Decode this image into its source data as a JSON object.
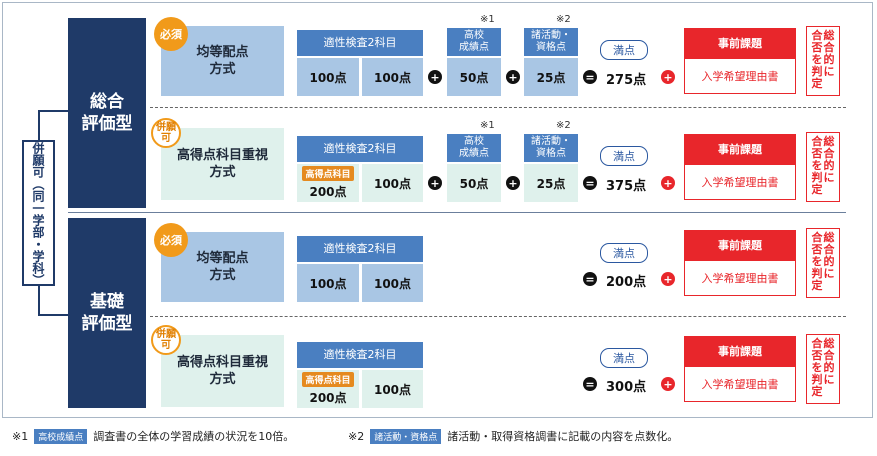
{
  "side_label": "併願可（同一学部・学科）",
  "categories": [
    {
      "label_line1": "総合",
      "label_line2": "評価型"
    },
    {
      "label_line1": "基礎",
      "label_line2": "評価型"
    }
  ],
  "rows": [
    {
      "badge": "必須",
      "method_line1": "均等配点",
      "method_line2": "方式",
      "subject_header": "適性検査2科目",
      "score1_tag": "",
      "score1": "100点",
      "score2": "100点",
      "note1": "※1",
      "grades_header_line1": "高校",
      "grades_header_line2": "成績点",
      "grades_score": "50点",
      "note2": "※2",
      "qual_header_line1": "諸活動・",
      "qual_header_line2": "資格点",
      "qual_score": "25点",
      "full_label": "満点",
      "total": "275点",
      "task_header": "事前課題",
      "task_body": "入学希望理由書"
    },
    {
      "badge": "併願可",
      "method_line1": "高得点科目重視",
      "method_line2": "方式",
      "subject_header": "適性検査2科目",
      "score1_tag": "高得点科目",
      "score1": "200点",
      "score2": "100点",
      "note1": "※1",
      "grades_header_line1": "高校",
      "grades_header_line2": "成績点",
      "grades_score": "50点",
      "note2": "※2",
      "qual_header_line1": "諸活動・",
      "qual_header_line2": "資格点",
      "qual_score": "25点",
      "full_label": "満点",
      "total": "375点",
      "task_header": "事前課題",
      "task_body": "入学希望理由書"
    },
    {
      "badge": "必須",
      "method_line1": "均等配点",
      "method_line2": "方式",
      "subject_header": "適性検査2科目",
      "score1_tag": "",
      "score1": "100点",
      "score2": "100点",
      "full_label": "満点",
      "total": "200点",
      "task_header": "事前課題",
      "task_body": "入学希望理由書"
    },
    {
      "badge": "併願可",
      "method_line1": "高得点科目重視",
      "method_line2": "方式",
      "subject_header": "適性検査2科目",
      "score1_tag": "高得点科目",
      "score1": "200点",
      "score2": "100点",
      "full_label": "満点",
      "total": "300点",
      "task_header": "事前課題",
      "task_body": "入学希望理由書"
    }
  ],
  "judge_col1": "総合的に",
  "judge_col2": "合否を判定",
  "operators": {
    "plus": "+",
    "equals": "="
  },
  "footnotes": [
    {
      "mark": "※1",
      "tag": "高校成績点",
      "text": "調査書の全体の学習成績の状況を10倍。"
    },
    {
      "mark": "※2",
      "tag": "諸活動・資格点",
      "text": "諸活動・取得資格調書に記載の内容を点数化。"
    }
  ]
}
